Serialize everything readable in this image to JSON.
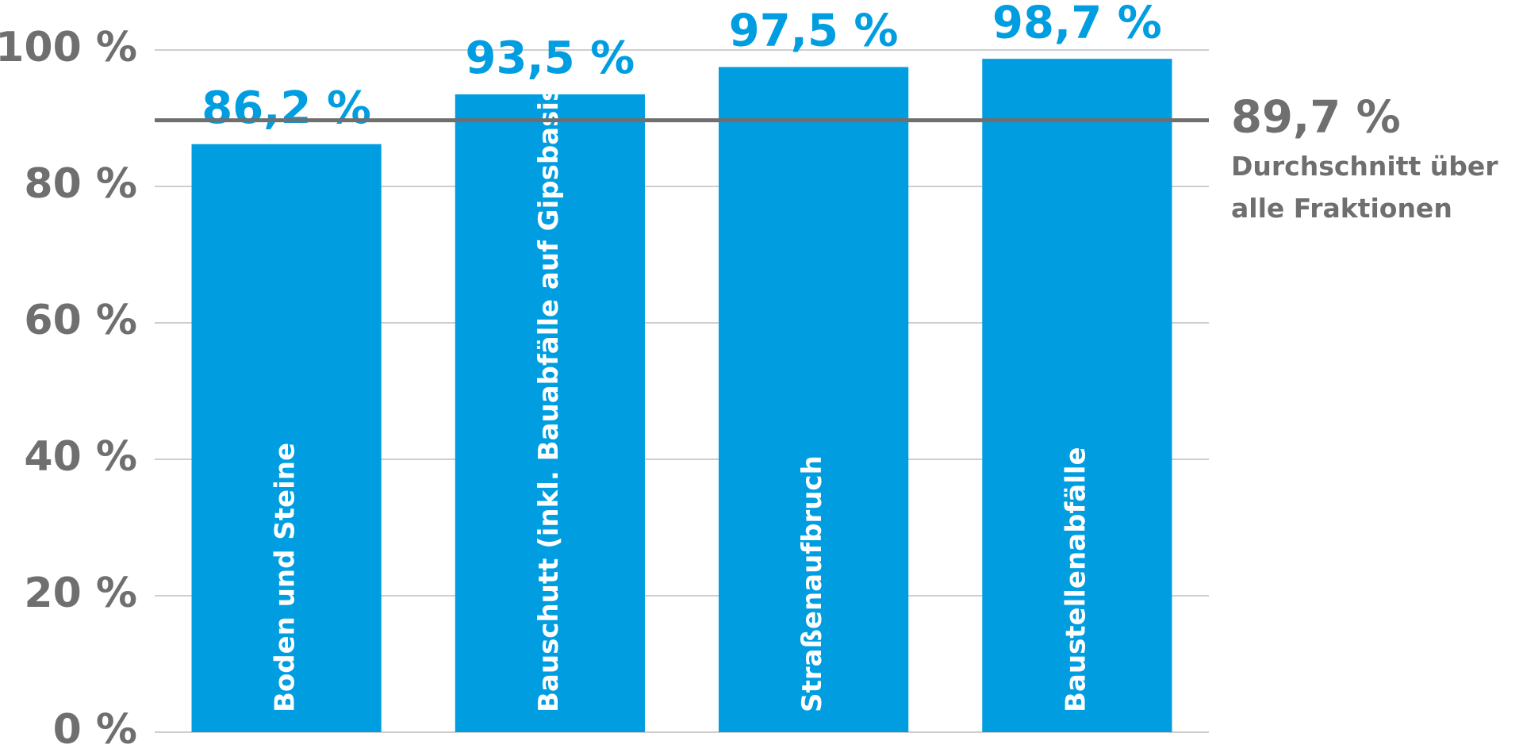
{
  "chart_data": {
    "type": "bar",
    "categories": [
      "Boden und Steine",
      "Bauschutt (inkl. Bauabfälle auf Gipsbasis)",
      "Straßenaufbruch",
      "Baustellenabfälle"
    ],
    "values": [
      86.2,
      93.5,
      97.5,
      98.7
    ],
    "value_labels": [
      "86,2 %",
      "93,5 %",
      "97,5 %",
      "98,7 %"
    ],
    "color": "#009ee0",
    "ylim": [
      0,
      100
    ],
    "yticks": [
      {
        "value": 0,
        "label": "0 %"
      },
      {
        "value": 20,
        "label": "20 %"
      },
      {
        "value": 40,
        "label": "40 %"
      },
      {
        "value": 60,
        "label": "60 %"
      },
      {
        "value": 80,
        "label": "80 %"
      },
      {
        "value": 100,
        "label": "100 %"
      }
    ],
    "grid": true,
    "reference_line": {
      "value": 89.7,
      "label": "89,7 %",
      "color": "#6f6f6f",
      "annotation": [
        "Durchschnitt über",
        "alle Fraktionen"
      ]
    }
  }
}
